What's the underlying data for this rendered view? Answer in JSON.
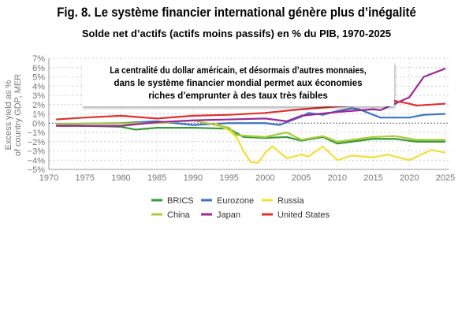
{
  "title": "Fig. 8. Le système financier international génère plus d’inégalité",
  "subtitle": "Solde net d’actifs (actifs moins passifs) en % du PIB, 1970-2025",
  "annotation": [
    "La centralité du dollar américain, et désormais d’autres monnaies,",
    "dans le système financier mondial permet aux économies",
    "riches d’emprunter à des taux très faibles"
  ],
  "chart_data": {
    "type": "line",
    "xlabel": "",
    "ylabel": "Excess yield as % of country GDP, MER",
    "xlim": [
      1970,
      2025
    ],
    "ylim": [
      -5,
      7
    ],
    "xticks": [
      "1970",
      "1975",
      "1980",
      "1985",
      "1990",
      "1995",
      "2000",
      "2005",
      "2010",
      "2015",
      "2020",
      "2025"
    ],
    "yticks": [
      "−5%",
      "−4%",
      "−3%",
      "−2%",
      "−1%",
      "0%",
      "1%",
      "2%",
      "3%",
      "4%",
      "5%",
      "6%",
      "7%"
    ],
    "grid": true,
    "legend_position": "bottom",
    "series": [
      {
        "name": "BRICS",
        "color": "#3a9a3a",
        "points": [
          [
            1971,
            -0.2
          ],
          [
            1980,
            -0.4
          ],
          [
            1982,
            -0.7
          ],
          [
            1985,
            -0.5
          ],
          [
            1990,
            -0.5
          ],
          [
            1995,
            -0.6
          ],
          [
            1997,
            -1.5
          ],
          [
            2000,
            -1.6
          ],
          [
            2003,
            -1.5
          ],
          [
            2005,
            -1.9
          ],
          [
            2008,
            -1.5
          ],
          [
            2010,
            -2.2
          ],
          [
            2015,
            -1.7
          ],
          [
            2018,
            -1.7
          ],
          [
            2021,
            -2.0
          ],
          [
            2025,
            -2.0
          ]
        ]
      },
      {
        "name": "Eurozone",
        "color": "#3b74c4",
        "points": [
          [
            1971,
            -0.1
          ],
          [
            1980,
            0.0
          ],
          [
            1985,
            0.2
          ],
          [
            1990,
            -0.2
          ],
          [
            1995,
            0.0
          ],
          [
            2000,
            0.0
          ],
          [
            2002,
            -0.2
          ],
          [
            2005,
            0.7
          ],
          [
            2006,
            1.1
          ],
          [
            2008,
            0.9
          ],
          [
            2010,
            1.3
          ],
          [
            2012,
            1.6
          ],
          [
            2013,
            1.5
          ],
          [
            2016,
            0.6
          ],
          [
            2020,
            0.6
          ],
          [
            2022,
            0.9
          ],
          [
            2025,
            1.0
          ]
        ]
      },
      {
        "name": "Russia",
        "color": "#f2df3a",
        "points": [
          [
            1993,
            0.0
          ],
          [
            1995,
            -0.8
          ],
          [
            1996,
            -1.5
          ],
          [
            1997,
            -3.0
          ],
          [
            1998,
            -4.2
          ],
          [
            1999,
            -4.3
          ],
          [
            2000,
            -3.2
          ],
          [
            2001,
            -2.5
          ],
          [
            2003,
            -3.8
          ],
          [
            2005,
            -3.4
          ],
          [
            2006,
            -3.6
          ],
          [
            2008,
            -2.5
          ],
          [
            2010,
            -4.0
          ],
          [
            2012,
            -3.5
          ],
          [
            2015,
            -3.7
          ],
          [
            2017,
            -3.4
          ],
          [
            2020,
            -4.0
          ],
          [
            2023,
            -2.9
          ],
          [
            2025,
            -3.2
          ]
        ]
      },
      {
        "name": "China",
        "color": "#a8cc3a",
        "points": [
          [
            1971,
            -0.1
          ],
          [
            1985,
            0.0
          ],
          [
            1990,
            0.3
          ],
          [
            1995,
            -0.5
          ],
          [
            1996,
            -1.3
          ],
          [
            2000,
            -1.5
          ],
          [
            2003,
            -1.0
          ],
          [
            2005,
            -1.8
          ],
          [
            2008,
            -1.4
          ],
          [
            2010,
            -2.0
          ],
          [
            2015,
            -1.5
          ],
          [
            2018,
            -1.4
          ],
          [
            2021,
            -1.8
          ],
          [
            2025,
            -1.8
          ]
        ]
      },
      {
        "name": "Japan",
        "color": "#9a2a96",
        "points": [
          [
            1971,
            -0.3
          ],
          [
            1980,
            -0.3
          ],
          [
            1985,
            0.1
          ],
          [
            1990,
            0.3
          ],
          [
            1995,
            0.4
          ],
          [
            2000,
            0.5
          ],
          [
            2003,
            0.2
          ],
          [
            2005,
            0.8
          ],
          [
            2010,
            1.2
          ],
          [
            2015,
            1.5
          ],
          [
            2016,
            1.4
          ],
          [
            2018,
            2.1
          ],
          [
            2020,
            2.8
          ],
          [
            2022,
            5.0
          ],
          [
            2025,
            5.9
          ]
        ]
      },
      {
        "name": "United States",
        "color": "#e03030",
        "points": [
          [
            1971,
            0.4
          ],
          [
            1975,
            0.6
          ],
          [
            1980,
            0.8
          ],
          [
            1985,
            0.5
          ],
          [
            1990,
            0.8
          ],
          [
            1995,
            0.9
          ],
          [
            2000,
            1.1
          ],
          [
            2005,
            1.5
          ],
          [
            2010,
            1.8
          ],
          [
            2015,
            2.0
          ],
          [
            2018,
            2.4
          ],
          [
            2020,
            2.1
          ],
          [
            2021,
            1.9
          ],
          [
            2025,
            2.1
          ]
        ]
      }
    ]
  }
}
